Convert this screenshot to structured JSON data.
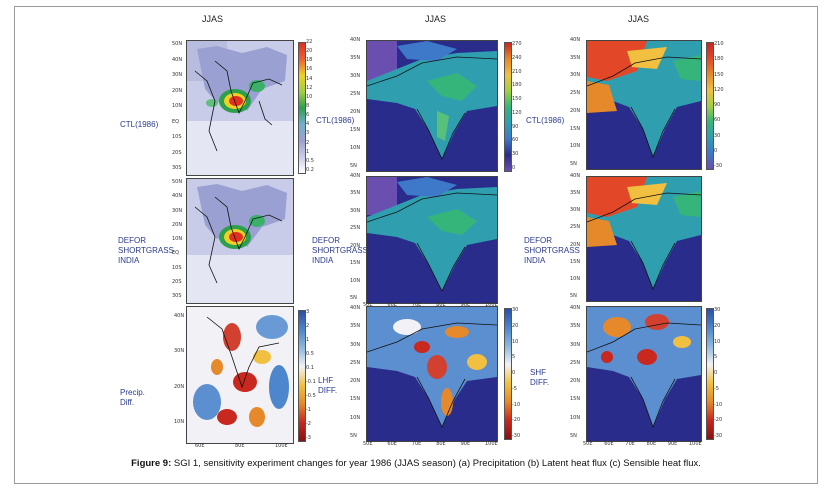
{
  "figure": {
    "caption_label": "Figure 9:",
    "caption_text": " SGI 1, sensitivity experiment changes for year 1986 (JJAS season) (a) Precipitation (b) Latent heat flux  (c) Sensible heat flux.",
    "column_header": "JJAS"
  },
  "rows": {
    "a": [
      "CTL(1986)",
      "DEFOR",
      "SHORTGRASS",
      "INDIA",
      "Precip.",
      "Diff."
    ],
    "b": [
      "CTL(1986)",
      "DEFOR",
      "SHORTGRASS",
      "INDIA",
      "LHF",
      "DIFF."
    ],
    "c": [
      "CTL(1986)",
      "DEFOR",
      "SHORTGRASS",
      "INDIA",
      "SHF",
      "DIFF."
    ]
  },
  "colorbars": {
    "precip": [
      "22",
      "20",
      "18",
      "16",
      "14",
      "12",
      "10",
      "8",
      "6",
      "4",
      "3",
      "2",
      "1",
      "0.5",
      "0.2"
    ],
    "lhf": [
      "270",
      "240",
      "210",
      "180",
      "150",
      "120",
      "90",
      "60",
      "30",
      "0"
    ],
    "shf": [
      "210",
      "180",
      "150",
      "120",
      "90",
      "60",
      "30",
      "0",
      "-30"
    ],
    "precip_diff": [
      "3",
      "2",
      "1",
      "0.5",
      "0.1",
      "-0.1",
      "-0.5",
      "-1",
      "-2",
      "-3"
    ],
    "lhf_diff": [
      "30",
      "20",
      "10",
      "5",
      "0",
      "-5",
      "-10",
      "-20",
      "-30"
    ],
    "shf_diff": [
      "30",
      "20",
      "10",
      "5",
      "0",
      "-5",
      "-10",
      "-20",
      "-30"
    ]
  },
  "axes": {
    "a_lat": [
      "50N",
      "40N",
      "30N",
      "20N",
      "10N",
      "EQ",
      "10S",
      "20S",
      "30S"
    ],
    "a_lat_diff": [
      "40N",
      "30N",
      "20N",
      "10N"
    ],
    "a_lon_diff": [
      "60E",
      "80E",
      "100E"
    ],
    "bc_lat": [
      "40N",
      "35N",
      "30N",
      "25N",
      "20N",
      "15N",
      "10N",
      "5N"
    ],
    "bc_lon": [
      "50E",
      "60E",
      "70E",
      "80E",
      "90E",
      "100E"
    ]
  }
}
